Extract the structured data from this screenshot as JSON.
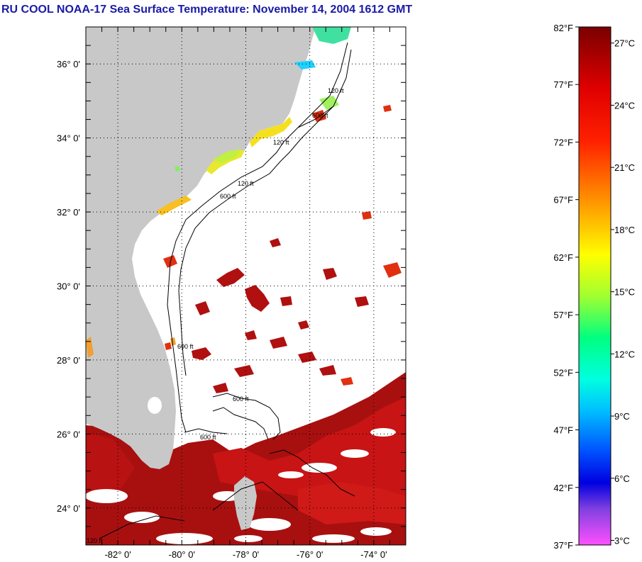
{
  "title": "RU COOL  NOAA-17  Sea Surface Temperature:  November 14, 2004 1612 GMT",
  "map": {
    "lon_range": [
      -83,
      -73
    ],
    "lat_range": [
      23,
      37
    ],
    "lat_ticks": [
      {
        "value": 36,
        "label": "36° 0'"
      },
      {
        "value": 34,
        "label": "34° 0'"
      },
      {
        "value": 32,
        "label": "32° 0'"
      },
      {
        "value": 30,
        "label": "30° 0'"
      },
      {
        "value": 28,
        "label": "28° 0'"
      },
      {
        "value": 26,
        "label": "26° 0'"
      },
      {
        "value": 24,
        "label": "24° 0'"
      }
    ],
    "lon_ticks": [
      {
        "value": -82,
        "label": "-82° 0'"
      },
      {
        "value": -80,
        "label": "-80° 0'"
      },
      {
        "value": -78,
        "label": "-78° 0'"
      },
      {
        "value": -76,
        "label": "-76° 0'"
      },
      {
        "value": -74,
        "label": "-74° 0'"
      }
    ],
    "contour_labels": [
      "120 ft",
      "600 ft",
      "120 ft",
      "600 ft",
      "120 ft",
      "600 ft",
      "600 ft",
      "600 ft",
      "120 ft"
    ],
    "colors": {
      "land": "#c8c8c8",
      "ocean_nodata": "#ffffff",
      "warm": "#b01010",
      "hot": "#d01818",
      "shelf_yellow": "#f5e020",
      "shelf_green": "#40e0a0",
      "sound_cyan": "#20d0ff"
    }
  },
  "colorbar": {
    "range_f": [
      37,
      82
    ],
    "range_c": [
      3,
      28
    ],
    "fahrenheit_labels": [
      "82°F",
      "77°F",
      "72°F",
      "67°F",
      "62°F",
      "57°F",
      "52°F",
      "47°F",
      "42°F",
      "37°F"
    ],
    "celsius_labels": [
      "27°C",
      "24°C",
      "21°C",
      "18°C",
      "15°C",
      "12°C",
      "9°C",
      "6°C",
      "3°C"
    ]
  }
}
